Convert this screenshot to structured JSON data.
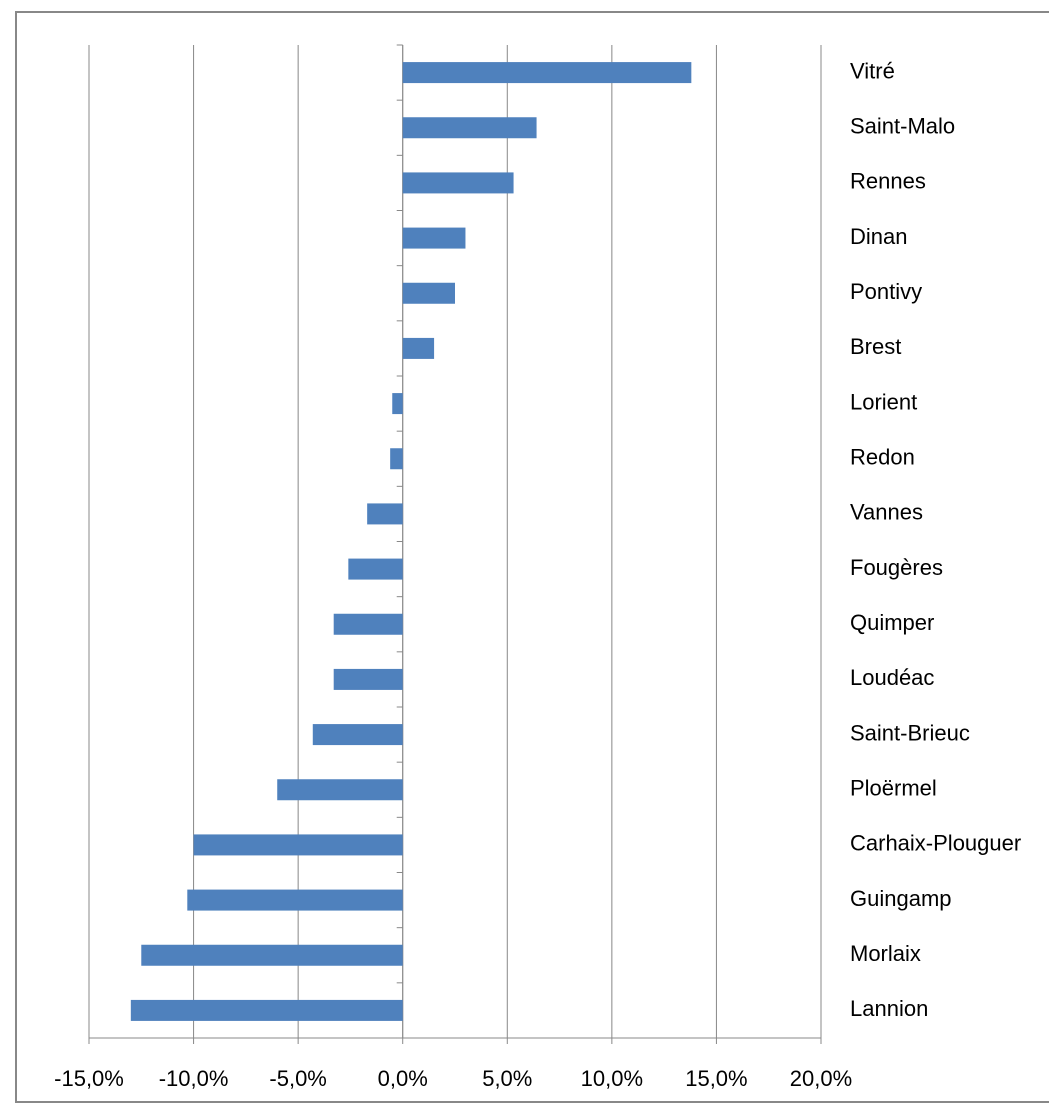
{
  "chart_data": {
    "type": "bar",
    "orientation": "horizontal",
    "categories": [
      "Vitré",
      "Saint-Malo",
      "Rennes",
      "Dinan",
      "Pontivy",
      "Brest",
      "Lorient",
      "Redon",
      "Vannes",
      "Fougères",
      "Quimper",
      "Loudéac",
      "Saint-Brieuc",
      "Ploërmel",
      "Carhaix-Plouguer",
      "Guingamp",
      "Morlaix",
      "Lannion"
    ],
    "values": [
      13.8,
      6.4,
      5.3,
      3.0,
      2.5,
      1.5,
      -0.5,
      -0.6,
      -1.7,
      -2.6,
      -3.3,
      -3.3,
      -4.3,
      -6.0,
      -10.0,
      -10.3,
      -12.5,
      -13.0
    ],
    "color": "#4f81bd",
    "xlim": [
      -15,
      20
    ],
    "xticks": [
      {
        "value": -15,
        "label": "-15,0%"
      },
      {
        "value": -10,
        "label": "-10,0%"
      },
      {
        "value": -5,
        "label": "-5,0%"
      },
      {
        "value": 0,
        "label": "0,0%"
      },
      {
        "value": 5,
        "label": "5,0%"
      },
      {
        "value": 10,
        "label": "10,0%"
      },
      {
        "value": 15,
        "label": "15,0%"
      },
      {
        "value": 20,
        "label": "20,0%"
      }
    ],
    "grid": true
  }
}
